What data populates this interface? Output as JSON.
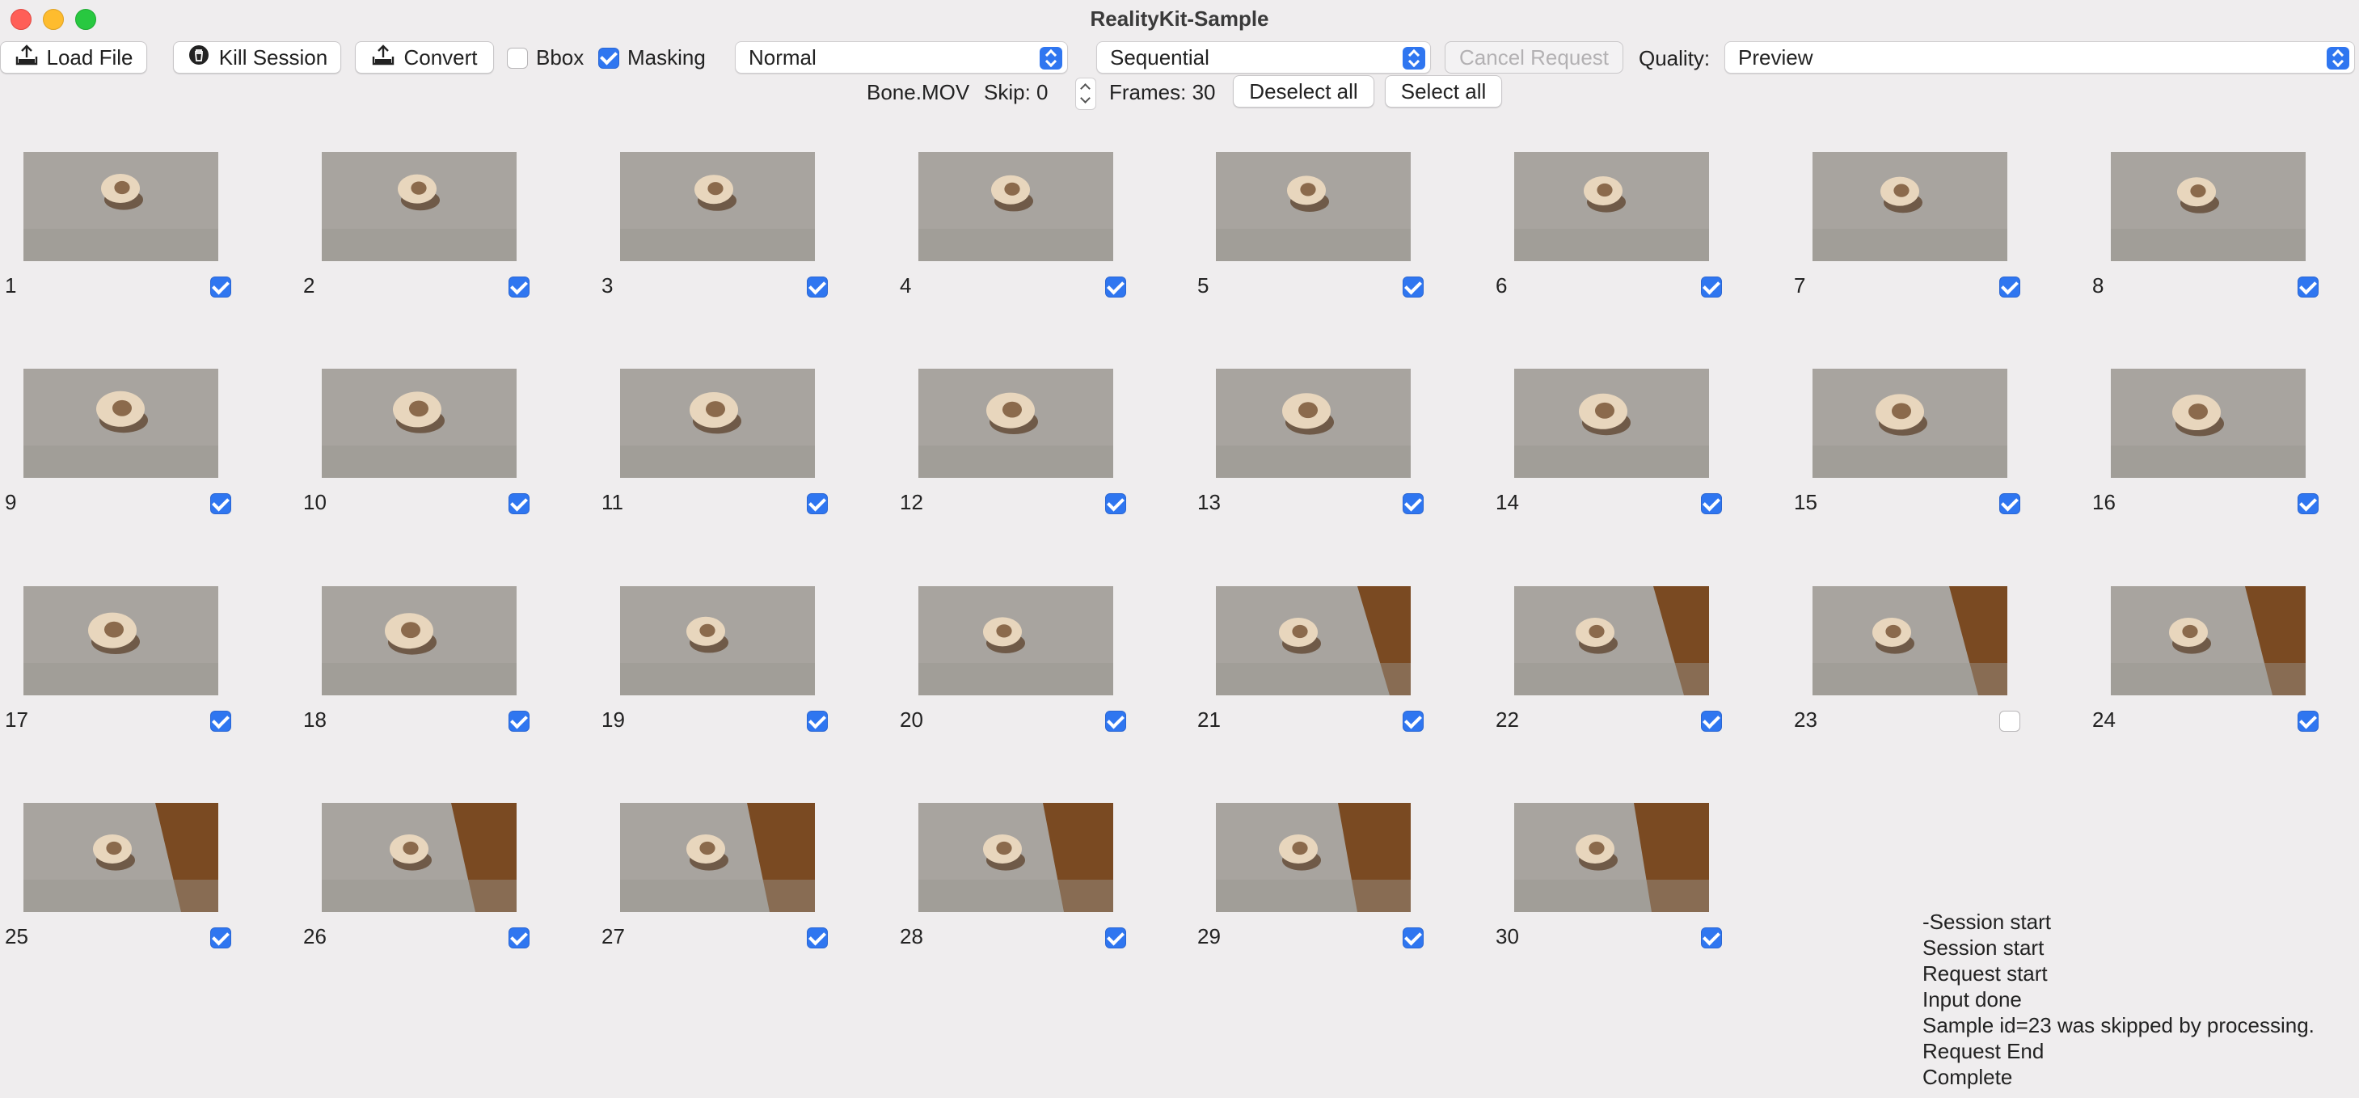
{
  "window": {
    "title": "RealityKit-Sample"
  },
  "toolbar": {
    "load_file": "Load File",
    "kill_session": "Kill Session",
    "convert": "Convert",
    "bbox_label": "Bbox",
    "bbox_checked": false,
    "masking_label": "Masking",
    "masking_checked": true,
    "detail_select": "Normal",
    "ordering_select": "Sequential",
    "cancel_request": "Cancel Request",
    "quality_label": "Quality:",
    "quality_select": "Preview"
  },
  "file_info": {
    "file_name": "Bone.MOV",
    "skip_label": "Skip: 0",
    "frames_label": "Frames: 30",
    "deselect_all": "Deselect all",
    "select_all": "Select all"
  },
  "frames": [
    {
      "num": "1",
      "checked": true
    },
    {
      "num": "2",
      "checked": true
    },
    {
      "num": "3",
      "checked": true
    },
    {
      "num": "4",
      "checked": true
    },
    {
      "num": "5",
      "checked": true
    },
    {
      "num": "6",
      "checked": true
    },
    {
      "num": "7",
      "checked": true
    },
    {
      "num": "8",
      "checked": true
    },
    {
      "num": "9",
      "checked": true
    },
    {
      "num": "10",
      "checked": true
    },
    {
      "num": "11",
      "checked": true
    },
    {
      "num": "12",
      "checked": true
    },
    {
      "num": "13",
      "checked": true
    },
    {
      "num": "14",
      "checked": true
    },
    {
      "num": "15",
      "checked": true
    },
    {
      "num": "16",
      "checked": true
    },
    {
      "num": "17",
      "checked": true
    },
    {
      "num": "18",
      "checked": true
    },
    {
      "num": "19",
      "checked": true
    },
    {
      "num": "20",
      "checked": true
    },
    {
      "num": "21",
      "checked": true
    },
    {
      "num": "22",
      "checked": true
    },
    {
      "num": "23",
      "checked": false
    },
    {
      "num": "24",
      "checked": true
    },
    {
      "num": "25",
      "checked": true
    },
    {
      "num": "26",
      "checked": true
    },
    {
      "num": "27",
      "checked": true
    },
    {
      "num": "28",
      "checked": true
    },
    {
      "num": "29",
      "checked": true
    },
    {
      "num": "30",
      "checked": true
    }
  ],
  "log": [
    "-Session start",
    "Session start",
    "Request start",
    "Input done",
    "Sample id=23 was skipped by processing.",
    "Request End",
    "Complete"
  ],
  "colors": {
    "accent": "#2f76f0",
    "window_bg": "#efedee",
    "table_gray": "#a8a49f",
    "wood": "#7a4a22"
  }
}
